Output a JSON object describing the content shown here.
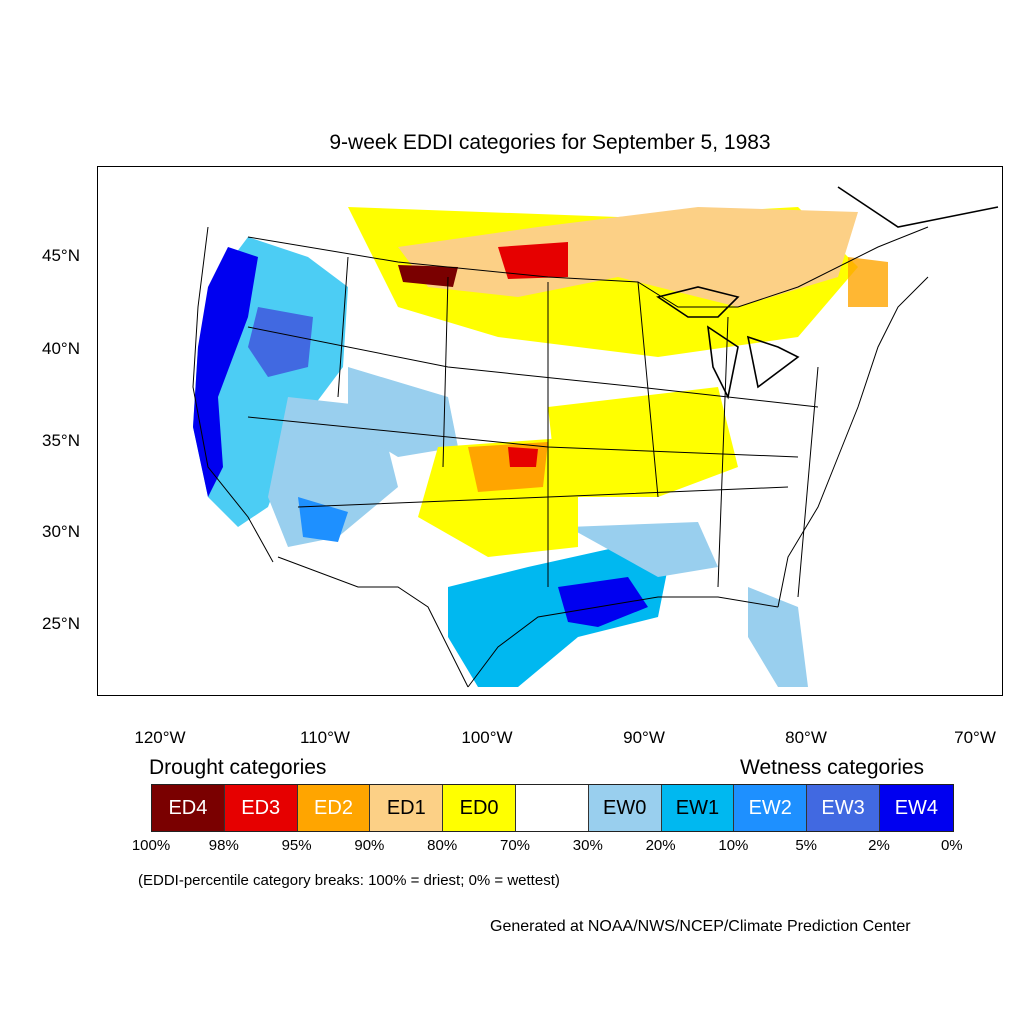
{
  "title": "9-week EDDI categories for September 5, 1983",
  "map": {
    "projection": "Lambert conformal (CONUS)",
    "latitude_labels": [
      "45°N",
      "40°N",
      "35°N",
      "30°N",
      "25°N"
    ],
    "longitude_labels": [
      "120°W",
      "110°W",
      "100°W",
      "90°W",
      "80°W",
      "70°W"
    ],
    "regions": [
      {
        "area": "Pacific coast (WA, OR, northern CA)",
        "category": "EW4"
      },
      {
        "area": "Great Basin / Nevada",
        "category": "EW3"
      },
      {
        "area": "Southern California / Arizona",
        "category": "EW2"
      },
      {
        "area": "Texas Gulf Coast / Louisiana",
        "category": "EW4"
      },
      {
        "area": "South Texas",
        "category": "EW1"
      },
      {
        "area": "Northern Plains (MT/ND border)",
        "category": "ED4"
      },
      {
        "area": "Eastern North Dakota / Minnesota",
        "category": "ED3"
      },
      {
        "area": "Upper Midwest / Great Lakes",
        "category": "ED1"
      },
      {
        "area": "Kansas / Oklahoma",
        "category": "ED2"
      },
      {
        "area": "Missouri / Illinois / Indiana",
        "category": "ED0"
      },
      {
        "area": "Southeast US",
        "category": "none"
      }
    ]
  },
  "legend": {
    "drought_heading": "Drought categories",
    "wetness_heading": "Wetness categories",
    "categories": [
      {
        "label": "ED4",
        "color": "#7a0000",
        "text_color": "#ffffff"
      },
      {
        "label": "ED3",
        "color": "#e60000",
        "text_color": "#ffffff"
      },
      {
        "label": "ED2",
        "color": "#ffa500",
        "text_color": "#ffffff"
      },
      {
        "label": "ED1",
        "color": "#fcd086",
        "text_color": "#000000"
      },
      {
        "label": "ED0",
        "color": "#ffff00",
        "text_color": "#000000"
      },
      {
        "label": "",
        "color": "#ffffff",
        "text_color": "#000000"
      },
      {
        "label": "EW0",
        "color": "#99cfee",
        "text_color": "#000000"
      },
      {
        "label": "EW1",
        "color": "#00b8f0",
        "text_color": "#000000"
      },
      {
        "label": "EW2",
        "color": "#1e90ff",
        "text_color": "#ffffff"
      },
      {
        "label": "EW3",
        "color": "#4169e1",
        "text_color": "#ffffff"
      },
      {
        "label": "EW4",
        "color": "#0000f0",
        "text_color": "#ffffff"
      }
    ],
    "breaks": [
      "100%",
      "98%",
      "95%",
      "90%",
      "80%",
      "70%",
      "30%",
      "20%",
      "10%",
      "5%",
      "2%",
      "0%"
    ]
  },
  "note": "(EDDI-percentile category breaks: 100% = driest; 0% = wettest)",
  "credit": "Generated at NOAA/NWS/NCEP/Climate Prediction Center"
}
